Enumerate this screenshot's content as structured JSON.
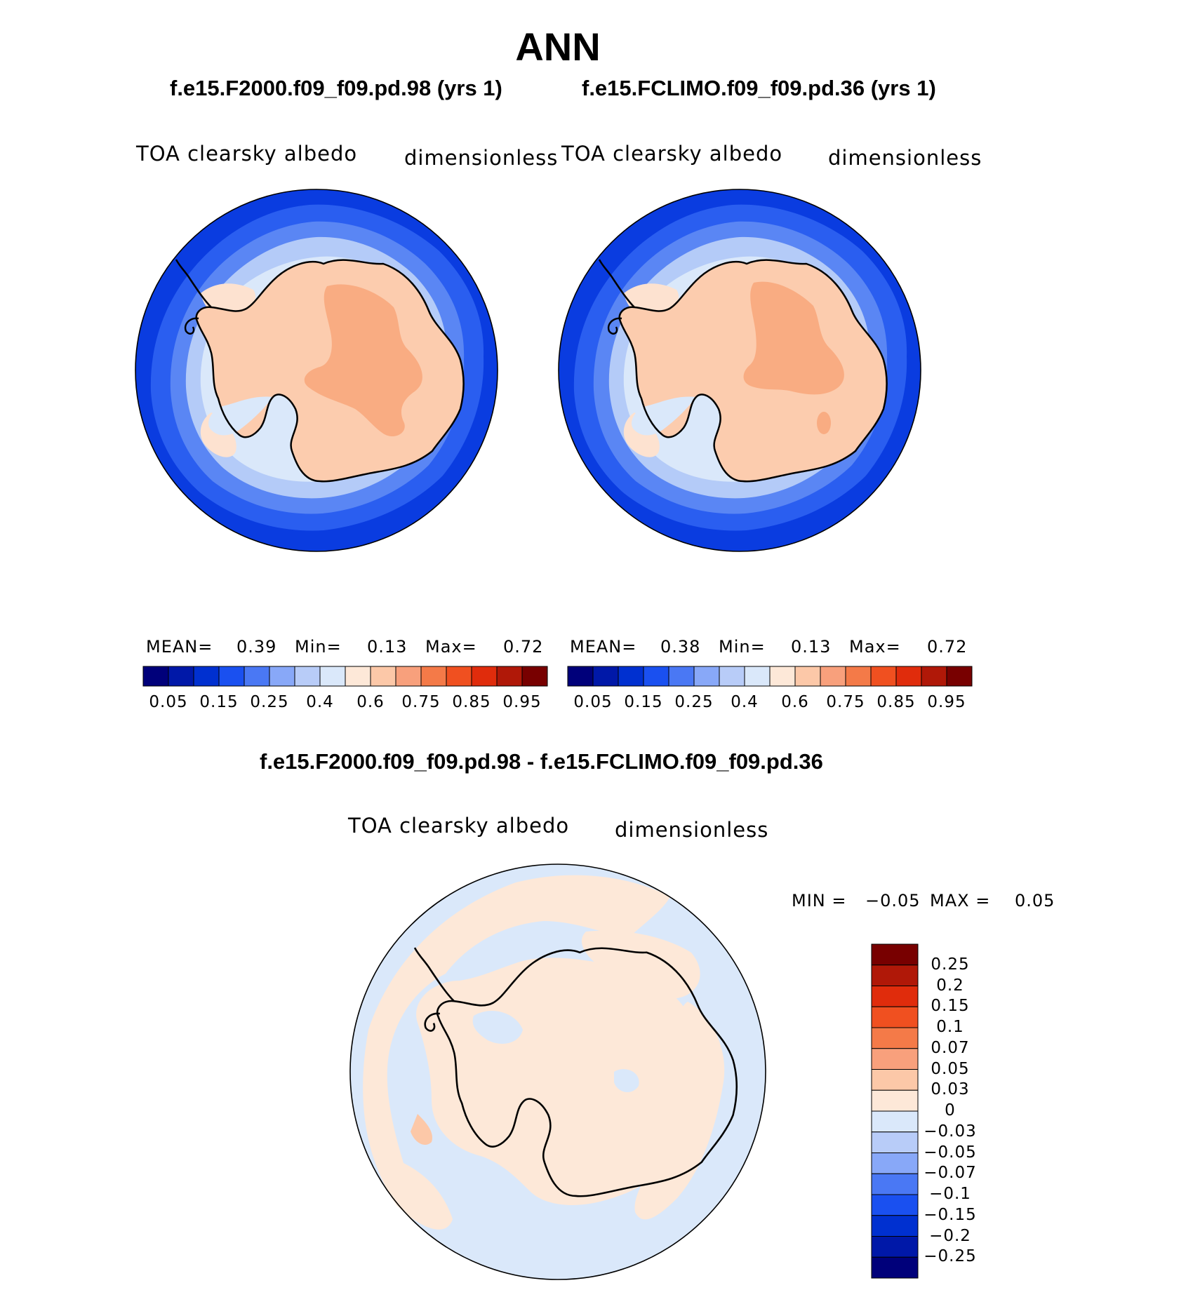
{
  "figure": {
    "title": "ANN",
    "panels": [
      {
        "case": "f.e15.F2000.f09_f09.pd.98 (yrs 1)",
        "variable": "TOA clearsky albedo",
        "units": "dimensionless",
        "stats": {
          "mean_label": "MEAN=",
          "mean": "0.39",
          "min_label": "Min=",
          "min": "0.13",
          "max_label": "Max=",
          "max": "0.72"
        }
      },
      {
        "case": "f.e15.FCLIMO.f09_f09.pd.36 (yrs 1)",
        "variable": "TOA clearsky albedo",
        "units": "dimensionless",
        "stats": {
          "mean_label": "MEAN=",
          "mean": "0.38",
          "min_label": "Min=",
          "min": "0.13",
          "max_label": "Max=",
          "max": "0.72"
        }
      }
    ],
    "diff_panel": {
      "case": "f.e15.F2000.f09_f09.pd.98 - f.e15.FCLIMO.f09_f09.pd.36",
      "variable": "TOA clearsky albedo",
      "units": "dimensionless",
      "stats": {
        "min_label": "MIN =",
        "min": "−0.05",
        "max_label": "MAX =",
        "max": "0.05"
      }
    },
    "colorbar": {
      "ticks": [
        "0.05",
        "0.15",
        "0.25",
        "0.4",
        "0.6",
        "0.75",
        "0.85",
        "0.95"
      ],
      "colors": [
        "#00007a",
        "#0018a8",
        "#0030d0",
        "#1a50f0",
        "#4a78f4",
        "#88a8f8",
        "#b8ccf8",
        "#dae8fa",
        "#fde8d8",
        "#fcc8a8",
        "#f8a07c",
        "#f47a48",
        "#f05020",
        "#e02c0c",
        "#b01808",
        "#780000"
      ]
    },
    "diff_colorbar": {
      "ticks": [
        "0.25",
        "0.2",
        "0.15",
        "0.1",
        "0.07",
        "0.05",
        "0.03",
        "0",
        "−0.03",
        "−0.05",
        "−0.07",
        "−0.1",
        "−0.15",
        "−0.2",
        "−0.25"
      ],
      "colors": [
        "#780000",
        "#b01808",
        "#e02c0c",
        "#f05020",
        "#f47a48",
        "#f8a07c",
        "#fcc8a8",
        "#fde8d8",
        "#dae8fa",
        "#b8ccf8",
        "#88a8f8",
        "#4a78f4",
        "#1a50f0",
        "#0030d0",
        "#0018a8",
        "#00007a"
      ]
    }
  }
}
